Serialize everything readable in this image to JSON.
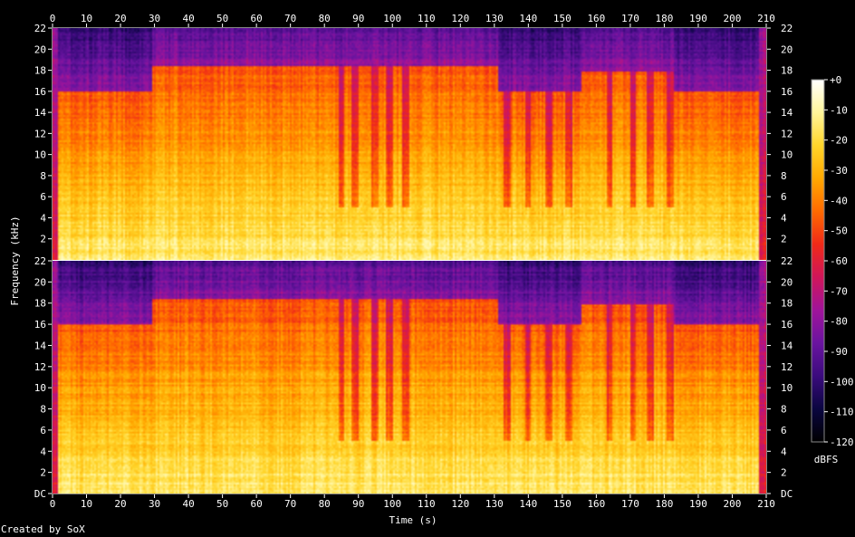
{
  "chart_data": {
    "type": "heatmap",
    "xlabel": "Time (s)",
    "ylabel": "Frequency (kHz)",
    "colorbar_label": "dBFS",
    "xlim": [
      0,
      210
    ],
    "ylim": [
      0,
      22
    ],
    "clim": [
      -120,
      0
    ],
    "x_ticks": [
      0,
      10,
      20,
      30,
      40,
      50,
      60,
      70,
      80,
      90,
      100,
      110,
      120,
      130,
      140,
      150,
      160,
      170,
      180,
      190,
      200,
      210
    ],
    "y_tick_labels": [
      "DC",
      "2",
      "4",
      "6",
      "8",
      "10",
      "12",
      "14",
      "16",
      "18",
      "20",
      "22"
    ],
    "colorbar_ticks": [
      "+0",
      "-10",
      "-20",
      "-30",
      "-40",
      "-50",
      "-60",
      "-70",
      "-80",
      "-90",
      "-100",
      "-110",
      "-120"
    ],
    "colormap": [
      "#000000",
      "#0a0640",
      "#3b0b7d",
      "#6a14a0",
      "#a0149a",
      "#d0165a",
      "#f02a18",
      "#ff6a00",
      "#ffa800",
      "#ffd52a",
      "#fff59a",
      "#ffffff"
    ],
    "channels": [
      {
        "name": "",
        "cutoff_profile": [
          {
            "t": [
              0,
              29
            ],
            "cutoff_khz": 16.0
          },
          {
            "t": [
              29,
              131
            ],
            "cutoff_khz": 18.5
          },
          {
            "t": [
              131,
              156
            ],
            "cutoff_khz": 16.0
          },
          {
            "t": [
              156,
              183
            ],
            "cutoff_khz": 18.0
          },
          {
            "t": [
              183,
              210
            ],
            "cutoff_khz": 16.0
          }
        ]
      },
      {
        "name": "",
        "cutoff_profile": [
          {
            "t": [
              0,
              29
            ],
            "cutoff_khz": 16.0
          },
          {
            "t": [
              29,
              131
            ],
            "cutoff_khz": 18.5
          },
          {
            "t": [
              131,
              156
            ],
            "cutoff_khz": 16.0
          },
          {
            "t": [
              156,
              183
            ],
            "cutoff_khz": 18.0
          },
          {
            "t": [
              183,
              210
            ],
            "cutoff_khz": 16.0
          }
        ]
      }
    ],
    "quiet_sections_s": [
      [
        84,
        86
      ],
      [
        88,
        90
      ],
      [
        94,
        96
      ],
      [
        98,
        100
      ],
      [
        103,
        105
      ],
      [
        133,
        135
      ],
      [
        139,
        141
      ],
      [
        145,
        147
      ],
      [
        151,
        153
      ],
      [
        163,
        165
      ],
      [
        170,
        172
      ],
      [
        175,
        177
      ],
      [
        181,
        183
      ]
    ]
  },
  "credit": "Created by SoX"
}
